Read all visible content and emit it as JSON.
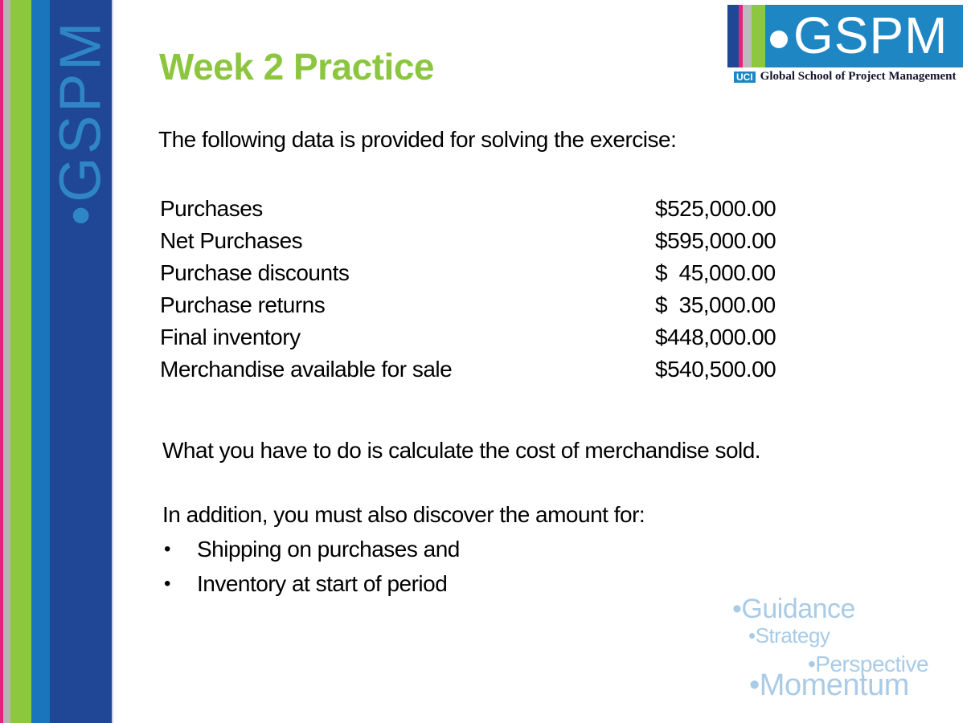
{
  "slide": {
    "title": "Week 2 Practice",
    "intro": "The following data is provided for solving the exercise:",
    "data_rows": [
      {
        "label": "Purchases",
        "value": "$525,000.00"
      },
      {
        "label": "Net Purchases",
        "value": "$595,000.00"
      },
      {
        "label": "Purchase discounts",
        "value": "$  45,000.00"
      },
      {
        "label": "Purchase returns",
        "value": "$  35,000.00"
      },
      {
        "label": "Final inventory",
        "value": "$448,000.00"
      },
      {
        "label": "Merchandise available for sale",
        "value": "$540,500.00"
      }
    ],
    "task_line": "What you have to do is calculate the cost of merchandise sold.",
    "additional_line": "In addition, you must also discover the amount for:",
    "bullet_char": "•",
    "bullets": [
      "Shipping on purchases and",
      "Inventory at start of period"
    ]
  },
  "sidebar": {
    "vertical_brand": "•GSPM"
  },
  "logo": {
    "brand": "GSPM",
    "uci_badge": "UCI",
    "subtitle": "Global School of Project Management"
  },
  "watermark": {
    "items": [
      "•Guidance",
      "•Strategy",
      "•Perspective",
      "•Momentum"
    ]
  },
  "colors": {
    "title_green": "#8cc63f",
    "stripe_pink": "#e6227e",
    "stripe_gray": "#b5b5b5",
    "stripe_green": "#8dc63f",
    "stripe_blue": "#1b75bc",
    "band_dark_blue": "#1f4795",
    "vertical_brand_blue": "#2f86c7",
    "logo_blue": "#1f86c4",
    "watermark_blue": "#a9cbe6"
  }
}
